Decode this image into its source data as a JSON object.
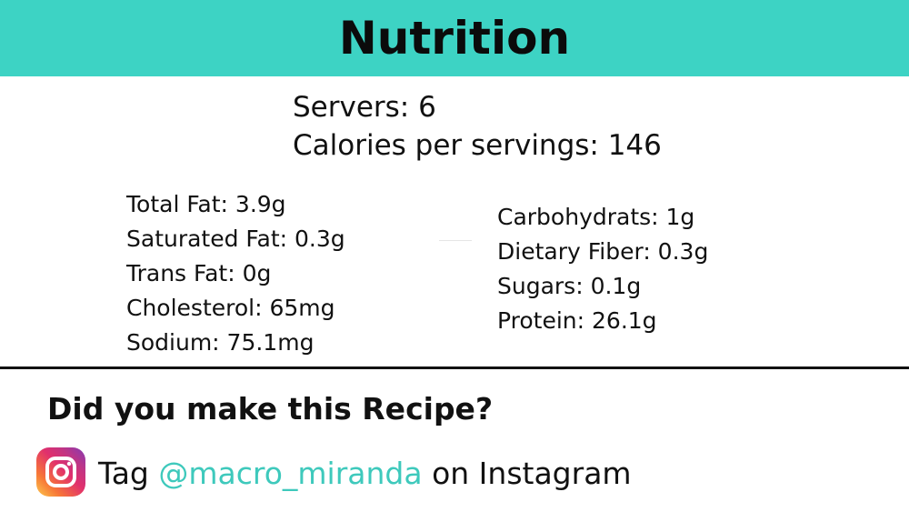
{
  "header": {
    "title": "Nutrition",
    "background_color": "#3dd3c4"
  },
  "summary": {
    "servings": "Servers: 6",
    "calories": "Calories per servings: 146"
  },
  "nutrients_left": [
    "Total Fat: 3.9g",
    "Saturated Fat: 0.3g",
    "Trans Fat: 0g",
    "Cholesterol: 65mg",
    "Sodium: 75.1mg"
  ],
  "nutrients_right": [
    "Carbohydrats: 1g",
    "Dietary Fiber: 0.3g",
    "Sugars: 0.1g",
    "Protein: 26.1g"
  ],
  "cta": {
    "question": "Did you make this Recipe?",
    "tag_prefix": "Tag ",
    "handle": "@macro_miranda",
    "tag_suffix": " on Instagram",
    "handle_color": "#3ec9bc",
    "icon": "instagram-icon"
  }
}
